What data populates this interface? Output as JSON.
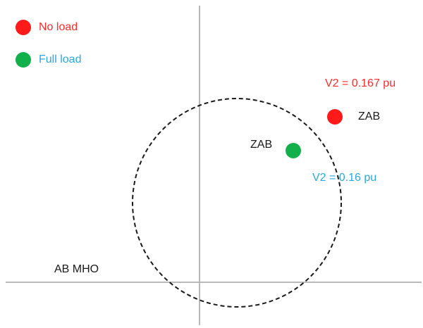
{
  "legend": [
    {
      "label": "No load",
      "color": "#ff1a1a"
    },
    {
      "label": "Full load",
      "color": "#12b04a"
    }
  ],
  "points": [
    {
      "label": "ZAB",
      "voltage_text": "V2 = 0.167 pu",
      "color": "#ff1a1a"
    },
    {
      "label": "ZAB",
      "voltage_text": "V2 = 0.16 pu",
      "color": "#12b04a"
    }
  ],
  "characteristic": {
    "label": "AB MHO",
    "line_style": "dashed"
  },
  "colors": {
    "axis": "#b8b8b8",
    "circle": "#1a1a1a",
    "text": "#1a1a1a",
    "no_load_text": "#ff2a2a",
    "full_load_text": "#29a9e0"
  }
}
